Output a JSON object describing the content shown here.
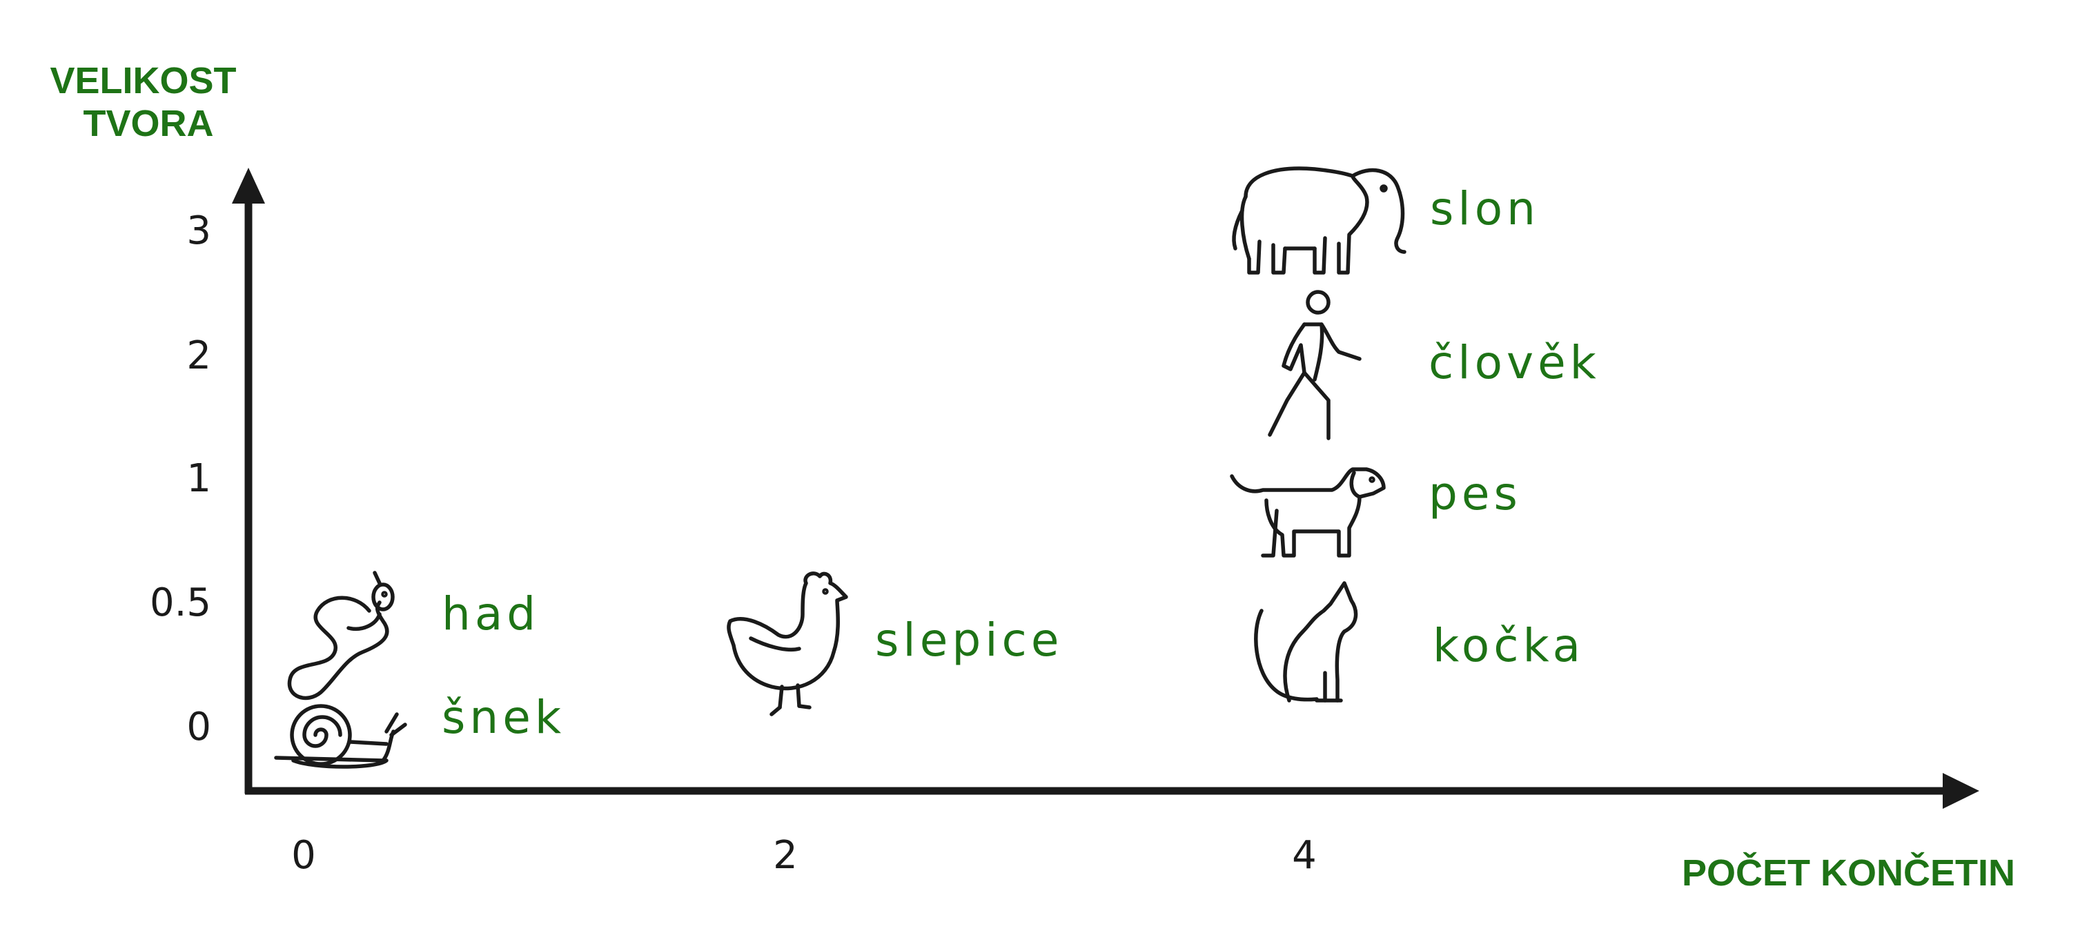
{
  "chart_data": {
    "type": "scatter",
    "ylabel": "VELIKOST TVORA",
    "xlabel": "POČET KONČETIN",
    "x_ticks": [
      0,
      2,
      4
    ],
    "y_ticks": [
      "0",
      "0.5",
      "1",
      "2",
      "3"
    ],
    "grid": false,
    "legend": "none",
    "points": [
      {
        "label": "šnek",
        "x": 0,
        "y": 0,
        "icon": "snail-icon"
      },
      {
        "label": "had",
        "x": 0,
        "y": 0.5,
        "icon": "snake-icon"
      },
      {
        "label": "slepice",
        "x": 2,
        "y": 0.3,
        "icon": "chicken-icon"
      },
      {
        "label": "kočka",
        "x": 4,
        "y": 0.3,
        "icon": "cat-icon"
      },
      {
        "label": "pes",
        "x": 4,
        "y": 1,
        "icon": "dog-icon"
      },
      {
        "label": "člověk",
        "x": 4,
        "y": 2,
        "icon": "person-walking-icon"
      },
      {
        "label": "slon",
        "x": 4,
        "y": 3,
        "icon": "elephant-icon"
      }
    ]
  },
  "colors": {
    "label": "#1e7316",
    "axis": "#1a1a1a",
    "icon": "#1a1a1a"
  }
}
